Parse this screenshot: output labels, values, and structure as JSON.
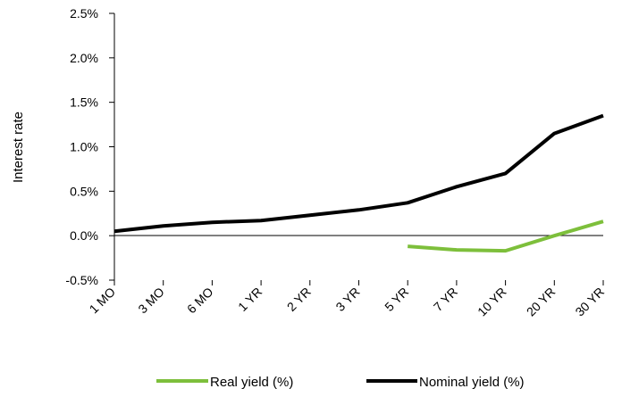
{
  "chart_data": {
    "type": "line",
    "categories": [
      "1 MO",
      "3 MO",
      "6 MO",
      "1 YR",
      "2 YR",
      "3 YR",
      "5 YR",
      "7 YR",
      "10 YR",
      "20 YR",
      "30 YR"
    ],
    "ylabel": "Interest rate",
    "ylim": [
      -0.5,
      2.5
    ],
    "y_ticks": [
      "-0.5%",
      "0.0%",
      "0.5%",
      "1.0%",
      "1.5%",
      "2.0%",
      "2.5%"
    ],
    "grid": false,
    "legend_position": "bottom",
    "series": [
      {
        "name": "Real yield (%)",
        "color": "#7dbf3b",
        "values": [
          null,
          null,
          null,
          null,
          null,
          null,
          -0.12,
          -0.16,
          -0.17,
          0.0,
          0.16
        ]
      },
      {
        "name": "Nominal yield (%)",
        "color": "#000000",
        "values": [
          0.05,
          0.11,
          0.15,
          0.17,
          0.23,
          0.29,
          0.37,
          0.55,
          0.7,
          1.15,
          1.35
        ]
      }
    ]
  }
}
